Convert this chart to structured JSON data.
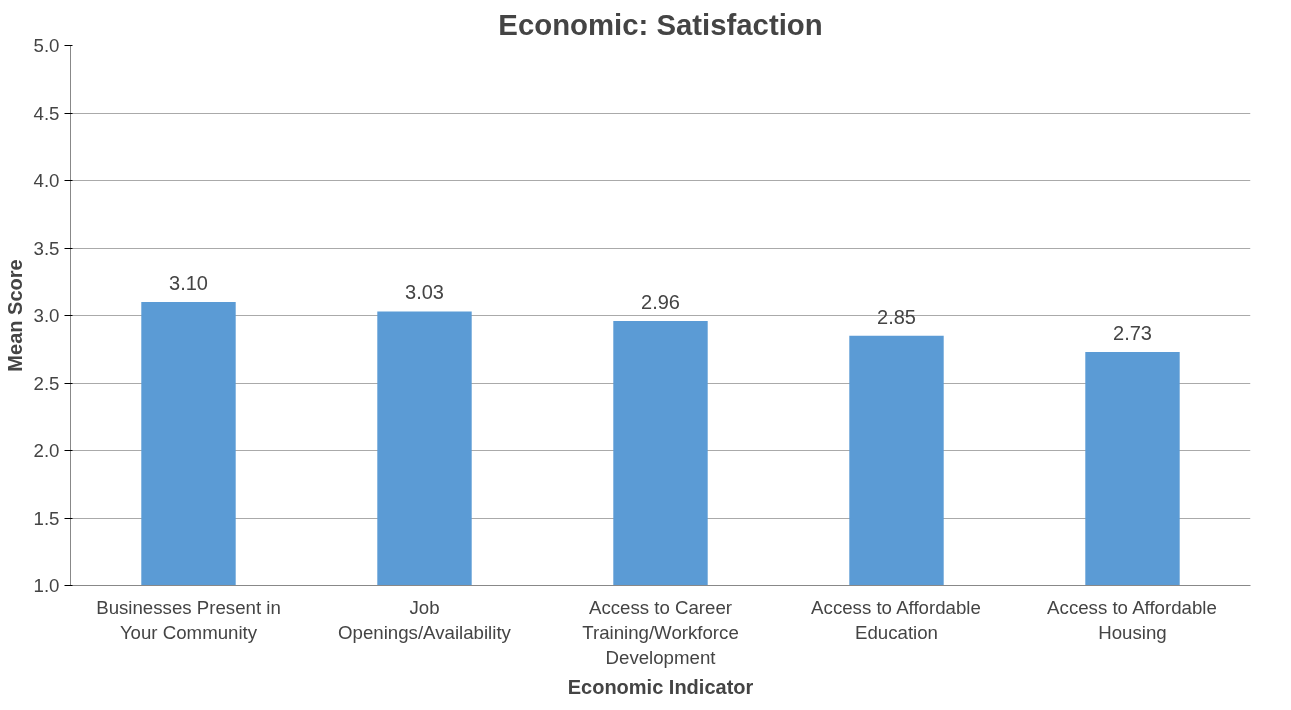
{
  "chart_data": {
    "type": "bar",
    "title": "Economic: Satisfaction",
    "xlabel": "Economic Indicator",
    "ylabel": "Mean Score",
    "categories": [
      "Businesses Present in Your Community",
      "Job Openings/Availability",
      "Access to Career Training/Workforce Development",
      "Access to Affordable Education",
      "Access to Affordable Housing"
    ],
    "values": [
      3.1,
      3.03,
      2.96,
      2.85,
      2.73
    ],
    "color": "#5b9bd5",
    "ylim": [
      1,
      5
    ],
    "yticks": [
      {
        "value": 1,
        "label": "1.0"
      },
      {
        "value": 1.5,
        "label": "1.5"
      },
      {
        "value": 2,
        "label": "2.0"
      },
      {
        "value": 2.5,
        "label": "2.5"
      },
      {
        "value": 3,
        "label": "3.0"
      },
      {
        "value": 3.5,
        "label": "3.5"
      },
      {
        "value": 4,
        "label": "4.0"
      },
      {
        "value": 4.5,
        "label": "4.5"
      },
      {
        "value": 5,
        "label": "5.0"
      }
    ],
    "grid": "y",
    "value_labels": [
      "3.10",
      "3.03",
      "2.96",
      "2.85",
      "2.73"
    ]
  }
}
